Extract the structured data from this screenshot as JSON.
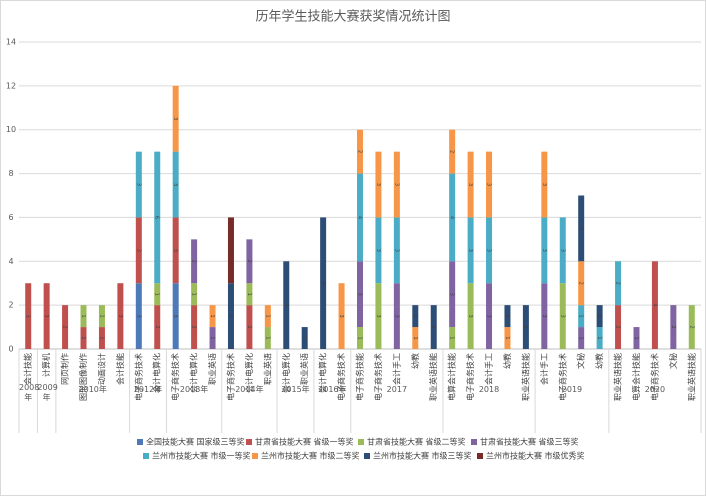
{
  "chart_data": {
    "type": "stacked_bar",
    "title": "历年学生技能大赛获奖情况统计图",
    "groups": [
      {
        "label": "2008年",
        "categories": [
          "会计技能"
        ]
      },
      {
        "label": "2009年",
        "categories": [
          "计算机"
        ]
      },
      {
        "label": "2010年",
        "categories": [
          "网页制作",
          "图形图像制作",
          "动画设计",
          "会计技能"
        ]
      },
      {
        "label": "2012年",
        "categories": [
          "电子商务技术",
          "会计电算化"
        ]
      },
      {
        "label": "2013年",
        "categories": [
          "电子商务技术",
          "会计电算化",
          "职业英语"
        ]
      },
      {
        "label": "2014年",
        "categories": [
          "电子商务技术",
          "会计电算化",
          "职业英语"
        ]
      },
      {
        "label": "2015年",
        "categories": [
          "会计电算化",
          "职业英语"
        ]
      },
      {
        "label": "2016年",
        "categories": [
          "会计电算化",
          "电子商务技术"
        ]
      },
      {
        "label": "2017",
        "categories": [
          "电子商务技能",
          "电子商务技术",
          "会计手工",
          "幼教",
          "职业英语技能"
        ]
      },
      {
        "label": "2018",
        "categories": [
          "电算会计技能",
          "电子商务技术",
          "会计手工",
          "幼教",
          "职业英语技能"
        ]
      },
      {
        "label": "2019",
        "categories": [
          "会计手工",
          "电子商务技术",
          "文秘",
          "幼教"
        ]
      },
      {
        "label": "2020",
        "categories": [
          "职业英语技能",
          "电算会计技能",
          "电子商务技术",
          "文秘",
          "职业英语技能"
        ]
      }
    ],
    "series": [
      {
        "name": "全国技能大赛 国家级三等奖",
        "color": "#4e79b9",
        "values": [
          null,
          null,
          null,
          null,
          null,
          null,
          3,
          null,
          3,
          null,
          null,
          null,
          null,
          null,
          null,
          null,
          null,
          null,
          null,
          null,
          null,
          null,
          null,
          null,
          null,
          null,
          null,
          null,
          null,
          null,
          null,
          null,
          null,
          null,
          null,
          null,
          null
        ]
      },
      {
        "name": "甘肃省技能大赛 省级一等奖",
        "color": "#c0504d",
        "values": [
          3,
          3,
          2,
          1,
          1,
          3,
          3,
          2,
          3,
          2,
          null,
          null,
          2,
          null,
          null,
          null,
          null,
          null,
          null,
          null,
          null,
          null,
          null,
          null,
          null,
          null,
          null,
          null,
          null,
          null,
          null,
          null,
          2,
          null,
          4,
          null,
          null
        ]
      },
      {
        "name": "甘肃省技能大赛 省级二等奖",
        "color": "#9bbb59",
        "values": [
          null,
          null,
          null,
          1,
          1,
          null,
          null,
          1,
          null,
          1,
          null,
          null,
          1,
          1,
          null,
          null,
          null,
          null,
          1,
          3,
          null,
          null,
          null,
          1,
          3,
          null,
          null,
          null,
          null,
          3,
          null,
          null,
          null,
          null,
          null,
          null,
          2
        ]
      },
      {
        "name": "甘肃省技能大赛 省级三等奖",
        "color": "#8064a2",
        "values": [
          null,
          null,
          null,
          null,
          null,
          null,
          null,
          null,
          null,
          2,
          1,
          null,
          2,
          null,
          null,
          null,
          null,
          null,
          3,
          null,
          3,
          null,
          null,
          3,
          null,
          3,
          null,
          null,
          3,
          null,
          1,
          null,
          null,
          1,
          null,
          2,
          null
        ]
      },
      {
        "name": "兰州市技能大赛 市级一等奖",
        "color": "#4bacc6",
        "values": [
          null,
          null,
          null,
          null,
          null,
          null,
          3,
          6,
          3,
          null,
          null,
          null,
          null,
          null,
          null,
          null,
          null,
          null,
          4,
          3,
          3,
          null,
          null,
          4,
          3,
          3,
          null,
          null,
          3,
          3,
          1,
          1,
          2,
          null,
          null,
          null,
          null
        ]
      },
      {
        "name": "兰州市技能大赛 市级二等奖",
        "color": "#f79646",
        "values": [
          null,
          null,
          null,
          null,
          null,
          null,
          null,
          null,
          3,
          null,
          1,
          null,
          null,
          1,
          null,
          null,
          null,
          3,
          2,
          3,
          3,
          1,
          null,
          2,
          3,
          3,
          1,
          null,
          3,
          null,
          2,
          null,
          null,
          null,
          null,
          null,
          null
        ]
      },
      {
        "name": "兰州市技能大赛 市级三等奖",
        "color": "#2c4d75",
        "values": [
          null,
          null,
          null,
          null,
          null,
          null,
          null,
          null,
          null,
          null,
          null,
          3,
          null,
          null,
          4,
          1,
          6,
          null,
          null,
          null,
          null,
          1,
          2,
          null,
          null,
          null,
          1,
          2,
          null,
          null,
          3,
          1,
          null,
          null,
          null,
          null,
          null
        ]
      },
      {
        "name": "兰州市技能大赛 市级优秀奖",
        "color": "#772c2a",
        "values": [
          null,
          null,
          null,
          null,
          null,
          null,
          null,
          null,
          null,
          null,
          null,
          3,
          null,
          null,
          null,
          null,
          null,
          null,
          null,
          null,
          null,
          null,
          null,
          null,
          null,
          null,
          null,
          null,
          null,
          null,
          null,
          null,
          null,
          null,
          null,
          null,
          null
        ]
      }
    ],
    "ylim": [
      0,
      14
    ],
    "yticks": [
      0,
      2,
      4,
      6,
      8,
      10,
      12,
      14
    ],
    "grid": true
  }
}
